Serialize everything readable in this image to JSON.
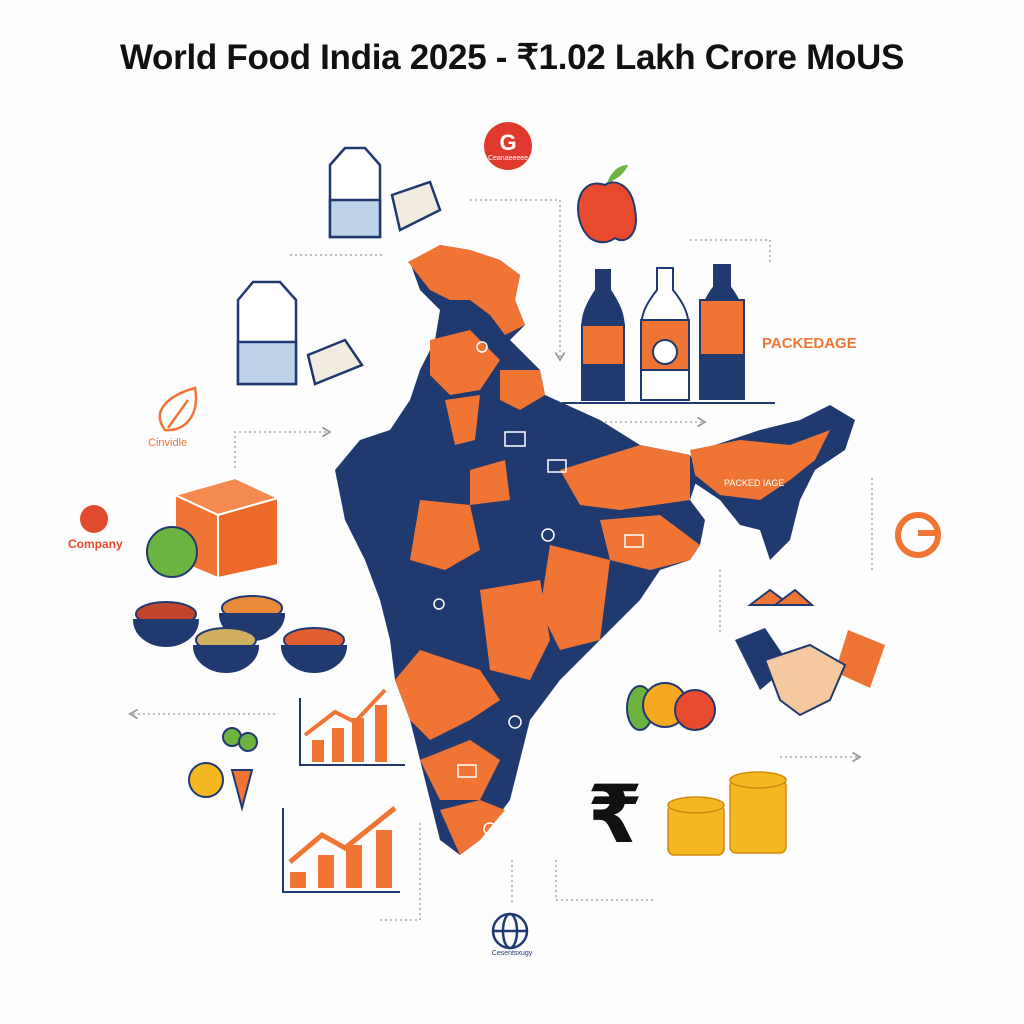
{
  "title": "World Food India 2025 - ₹1.02 Lakh Crore MoUS",
  "colors": {
    "navy": "#203a70",
    "orange": "#f07535",
    "red": "#e03a2e",
    "gold": "#f5b820",
    "green": "#6cb33f"
  },
  "labels": {
    "top_badge": "Ceanaeeeee",
    "leaf_logo": "Cinvidle",
    "company_logo": "Company",
    "packaging": "PACKEDAGE",
    "map_northeast": "PACKED IAGE",
    "globe_caption": "Cesentsxugy"
  },
  "icons": [
    "milk-carton-icon",
    "cheese-icon",
    "apple-icon",
    "bottle-icon",
    "leaf-icon",
    "box-icon",
    "spice-bowl-icon",
    "bar-chart-icon",
    "vegetable-icon",
    "globe-icon",
    "rupee-icon",
    "coins-icon",
    "handshake-icon",
    "fruit-icon",
    "g-logo-icon"
  ]
}
